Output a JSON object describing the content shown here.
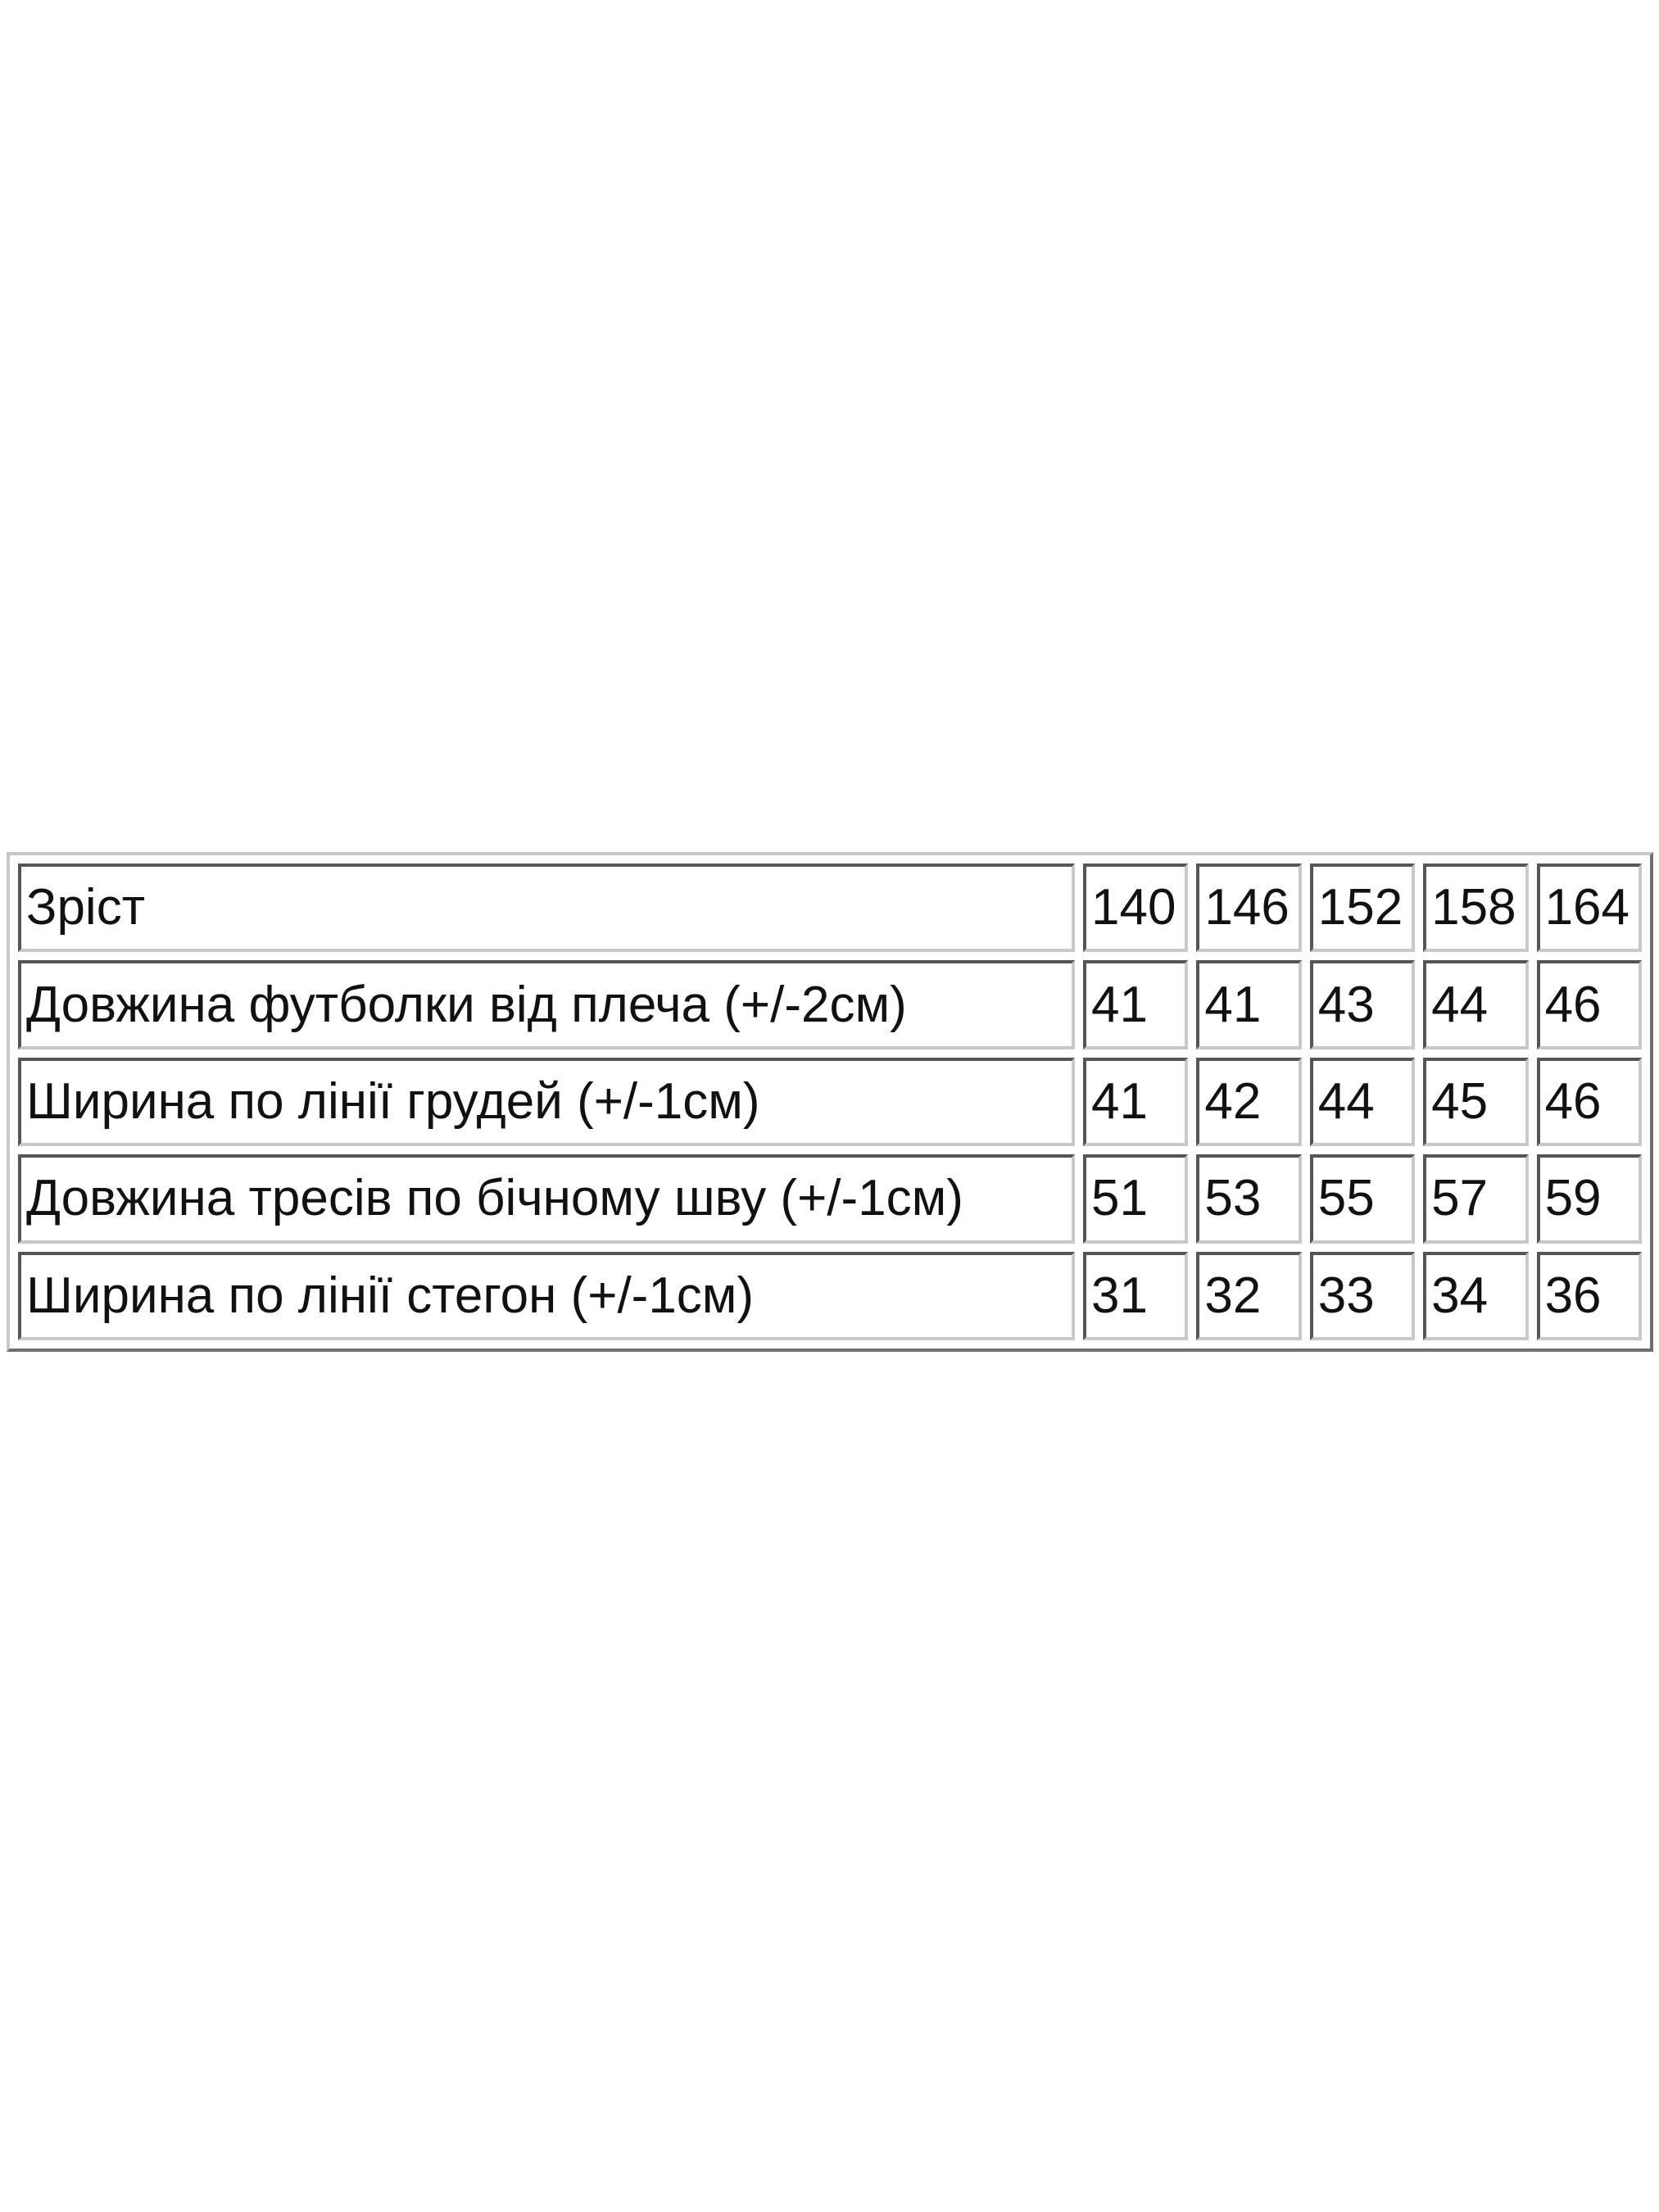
{
  "table": {
    "header": {
      "label": "Зріст",
      "values": [
        "140",
        "146",
        "152",
        "158",
        "164"
      ]
    },
    "rows": [
      {
        "label": "Довжина футболки від плеча (+/-2см)",
        "values": [
          "41",
          "41",
          "43",
          "44",
          "46"
        ]
      },
      {
        "label": "Ширина по лінії грудей (+/-1см)",
        "values": [
          "41",
          "42",
          "44",
          "45",
          "46"
        ]
      },
      {
        "label": "Довжина тресів по бічному шву (+/-1см)",
        "values": [
          "51",
          "53",
          "55",
          "57",
          "59"
        ]
      },
      {
        "label": "Ширина по лінії стегон (+/-1см)",
        "values": [
          "31",
          "32",
          "33",
          "34",
          "36"
        ]
      }
    ]
  }
}
